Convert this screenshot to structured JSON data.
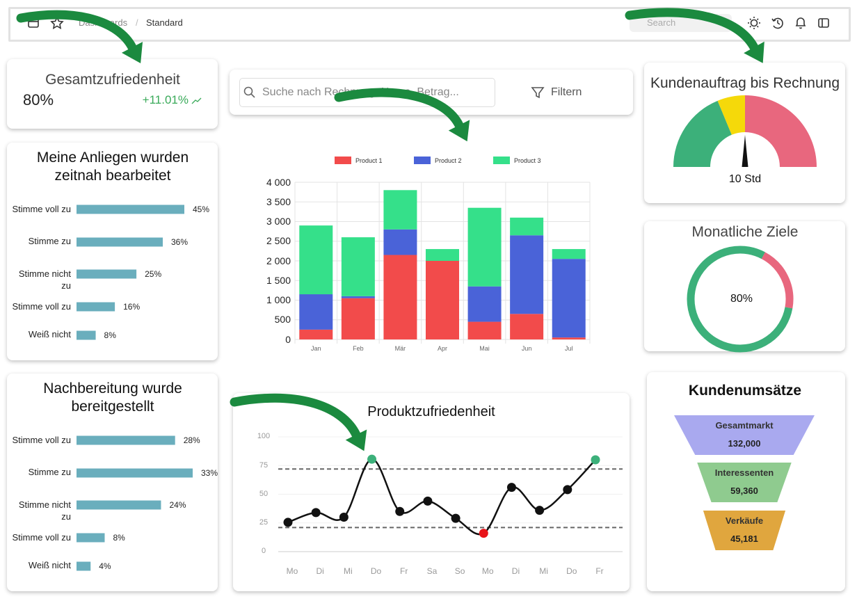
{
  "header": {
    "breadcrumb": [
      "Dashboards",
      "Standard"
    ],
    "separator": "/",
    "search_placeholder": "Search"
  },
  "kpi": {
    "title": "Gesamtzufriedenheit",
    "value": "80%",
    "change": "+11.01%"
  },
  "search": {
    "placeholder": "Suche nach Rechnung, Name, Betrag...",
    "filter": "Filtern"
  },
  "chart_data": [
    {
      "type": "hbar",
      "title": "Meine Anliegen wurden zeitnah bearbeitet",
      "categories": [
        "Stimme voll zu",
        "Stimme zu",
        "Stimme nicht zu",
        "Stimme voll zu",
        "Weiß nicht"
      ],
      "values": [
        45,
        36,
        25,
        16,
        8
      ],
      "value_labels": [
        "45%",
        "36%",
        "25%",
        "16%",
        "8%"
      ],
      "color": "#6aaebd"
    },
    {
      "type": "hbar",
      "title": "Nachbereitung wurde bereitgestellt",
      "categories": [
        "Stimme voll zu",
        "Stimme zu",
        "Stimme nicht zu",
        "Stimme voll zu",
        "Weiß nicht"
      ],
      "values": [
        28,
        33,
        24,
        8,
        4
      ],
      "value_labels": [
        "28%",
        "33%",
        "24%",
        "8%",
        "4%"
      ],
      "color": "#6aaebd"
    },
    {
      "type": "stacked_bar",
      "categories": [
        "Jan",
        "Feb",
        "Mär",
        "Apr",
        "Mai",
        "Jun",
        "Jul"
      ],
      "series": [
        {
          "name": "Product 1",
          "color": "#f24b4b",
          "values": [
            250,
            1050,
            2150,
            2000,
            450,
            650,
            50
          ]
        },
        {
          "name": "Product 2",
          "color": "#4a63d8",
          "values": [
            900,
            50,
            650,
            0,
            900,
            2000,
            2000
          ]
        },
        {
          "name": "Product 3",
          "color": "#35e08a",
          "values": [
            1750,
            1500,
            1000,
            300,
            2000,
            450,
            250
          ]
        }
      ],
      "ylim": [
        0,
        4000
      ],
      "yticks": [
        0,
        500,
        {
          "value": 1000,
          "label": "1 000"
        },
        {
          "value": 1500,
          "label": "1 500"
        },
        {
          "value": 2000,
          "label": "2 000"
        },
        {
          "value": 2500,
          "label": "2 500"
        },
        {
          "value": 3000,
          "label": "3 000"
        },
        {
          "value": 3500,
          "label": "3 500"
        },
        {
          "value": 4000,
          "label": "4 000"
        }
      ],
      "grid": true
    },
    {
      "type": "line",
      "title": "Produktzufriedenheit",
      "categories": [
        "Mo",
        "Di",
        "Mi",
        "Do",
        "Fr",
        "Sa",
        "So",
        "Mo",
        "Di",
        "Mi",
        "Do",
        "Fr"
      ],
      "values": [
        25.5,
        34,
        30,
        80.5,
        35,
        44,
        29,
        16,
        56,
        36,
        54,
        80
      ],
      "color": "#111111",
      "ylim": [
        0,
        100
      ],
      "yticks": [
        0,
        25,
        50,
        75,
        100
      ],
      "thresholds": [
        72,
        21
      ],
      "above_color": "#3cb07a",
      "below_color": "#e8141a",
      "grid": true
    },
    {
      "type": "gauge",
      "title": "Kundenauftrag bis Rechnung",
      "value": 10,
      "value_label": "10 Std",
      "range": [
        0,
        20
      ],
      "bands": [
        {
          "to": 7.5,
          "color": "#3cb07a"
        },
        {
          "to": 10,
          "color": "#f5d90a"
        },
        {
          "to": 20,
          "color": "#e8677e"
        }
      ]
    },
    {
      "type": "donut",
      "title": "Monatliche Ziele",
      "value": 80,
      "value_label": "80%",
      "color": "#3cb07a",
      "rest_color": "#e8677e"
    },
    {
      "type": "funnel",
      "title": "Kundenumsätze",
      "categories": [
        "Gesamtmarkt",
        "Interessenten",
        "Verkäufe"
      ],
      "values": [
        132000,
        59360,
        45181
      ],
      "value_labels": [
        "132,000",
        "59,360",
        "45,181"
      ],
      "colors": [
        "#a9a9ef",
        "#8fcb8f",
        "#e0a63e"
      ]
    }
  ]
}
